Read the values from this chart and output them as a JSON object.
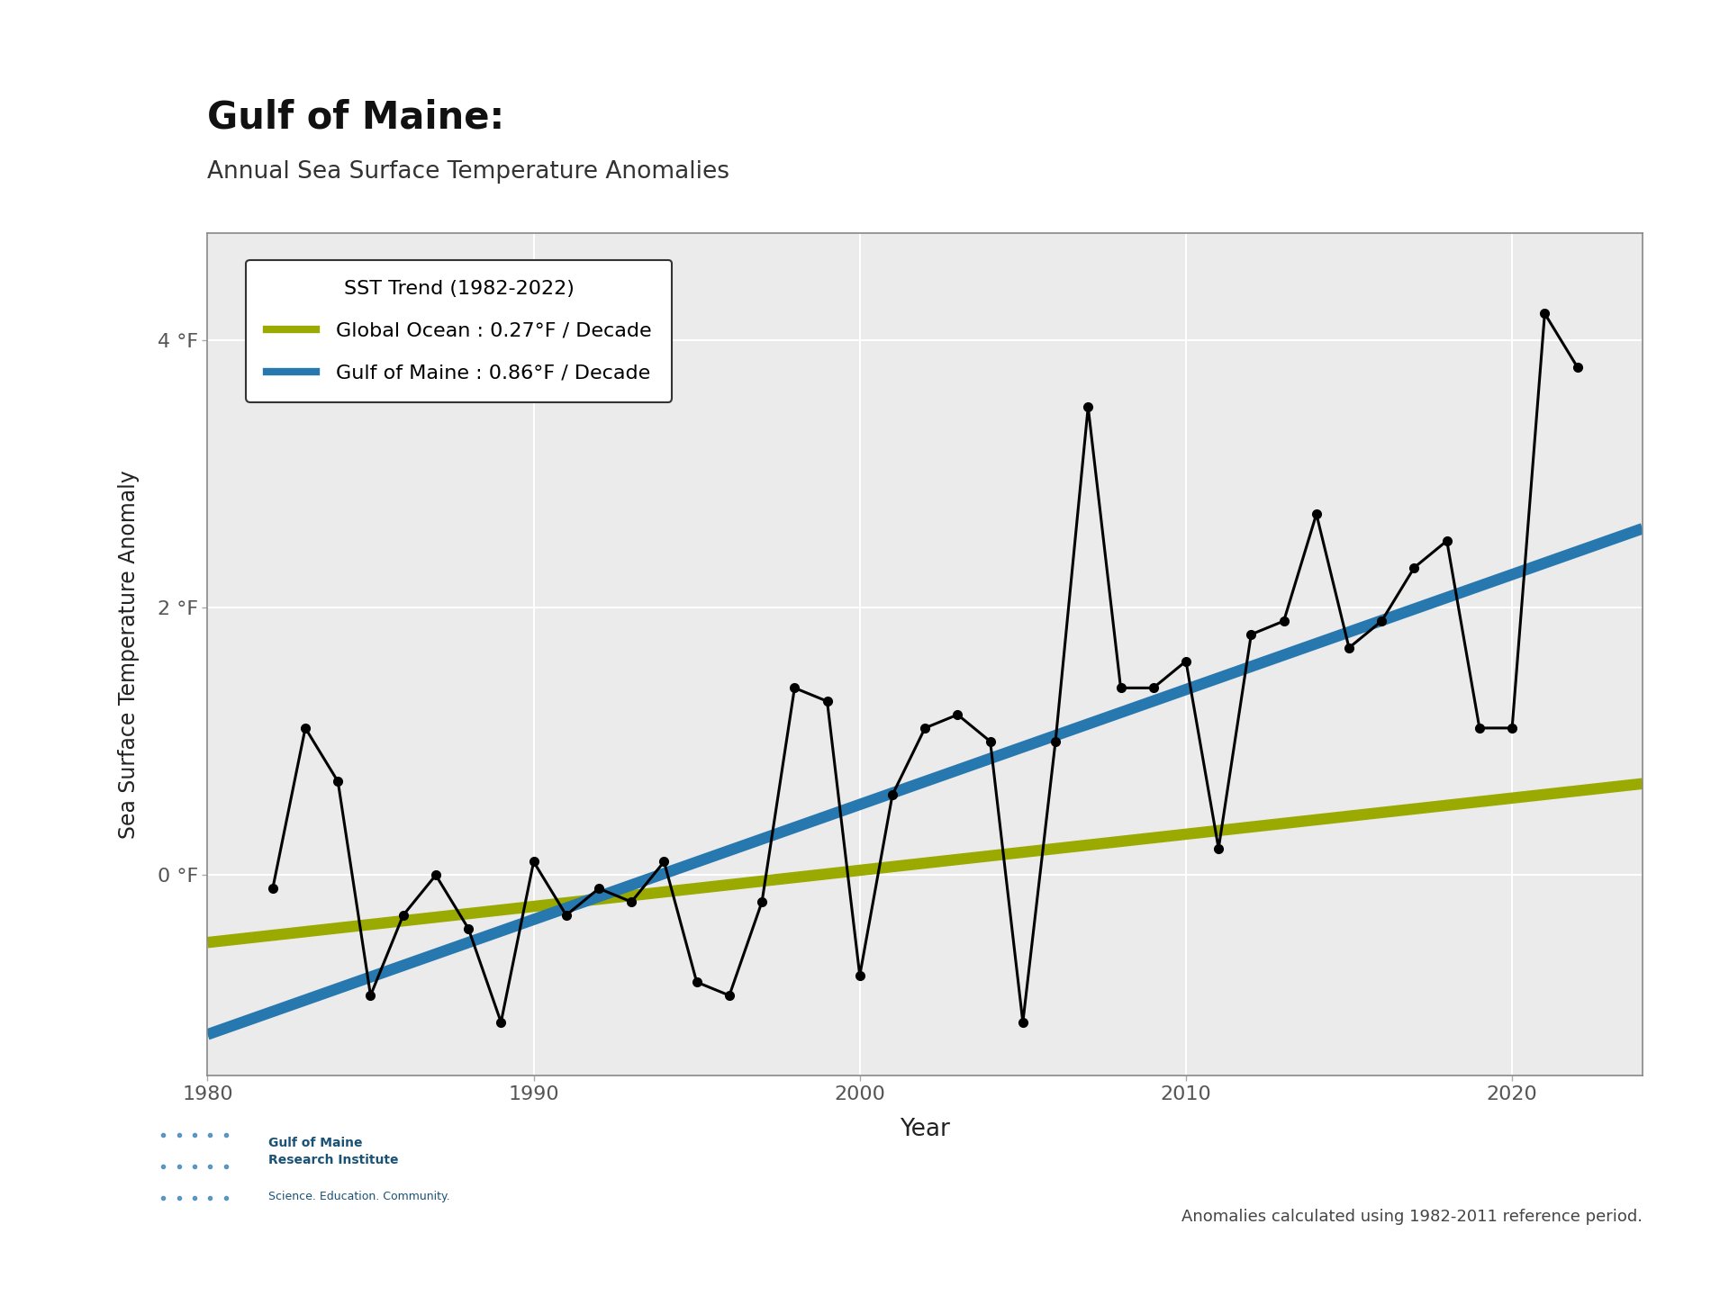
{
  "title_main": "Gulf of Maine:",
  "title_sub": "Annual Sea Surface Temperature Anomalies",
  "xlabel": "Year",
  "ylabel": "Sea Surface Temperature Anomaly",
  "ytick_labels": [
    "0 °F",
    "2 °F",
    "4 °F"
  ],
  "ytick_values": [
    0,
    2,
    4
  ],
  "xtick_values": [
    1980,
    1990,
    2000,
    2010,
    2020
  ],
  "xlim": [
    1980,
    2024
  ],
  "ylim": [
    -1.5,
    4.8
  ],
  "years": [
    1982,
    1983,
    1984,
    1985,
    1986,
    1987,
    1988,
    1989,
    1990,
    1991,
    1992,
    1993,
    1994,
    1995,
    1996,
    1997,
    1998,
    1999,
    2000,
    2001,
    2002,
    2003,
    2004,
    2005,
    2006,
    2007,
    2008,
    2009,
    2010,
    2011,
    2012,
    2013,
    2014,
    2015,
    2016,
    2017,
    2018,
    2019,
    2020,
    2021,
    2022
  ],
  "gom_sst": [
    -0.1,
    1.1,
    0.7,
    -0.9,
    -0.3,
    0.0,
    -0.4,
    -1.1,
    0.1,
    -0.3,
    -0.1,
    -0.2,
    0.1,
    -0.8,
    -0.9,
    -0.2,
    1.4,
    1.3,
    -0.75,
    0.6,
    1.1,
    1.2,
    1.0,
    -1.1,
    1.0,
    3.5,
    1.4,
    1.4,
    1.6,
    0.2,
    1.8,
    1.9,
    2.7,
    1.7,
    1.9,
    2.3,
    2.5,
    1.1,
    1.1,
    4.2,
    3.8
  ],
  "gom_trend_slope": 0.086,
  "gom_trend_intercept": -1.02,
  "global_trend_slope": 0.027,
  "global_trend_intercept": -0.45,
  "gom_trend_color": "#2878b0",
  "global_trend_color": "#9aaa00",
  "data_line_color": "#000000",
  "data_marker_color": "#000000",
  "legend_title": "SST Trend (1982-2022)",
  "legend_global_label": "Global Ocean : 0.27°F / Decade",
  "legend_gom_label": "Gulf of Maine : 0.86°F / Decade",
  "background_color": "#ffffff",
  "plot_bg_color": "#ebebeb",
  "grid_color": "#ffffff",
  "footer_note": "Anomalies calculated using 1982-2011 reference period.",
  "title_fontsize": 30,
  "subtitle_fontsize": 19,
  "axis_label_fontsize": 17,
  "tick_fontsize": 16,
  "legend_fontsize": 16,
  "trend_linewidth": 9,
  "data_linewidth": 2.2,
  "marker_size": 7
}
